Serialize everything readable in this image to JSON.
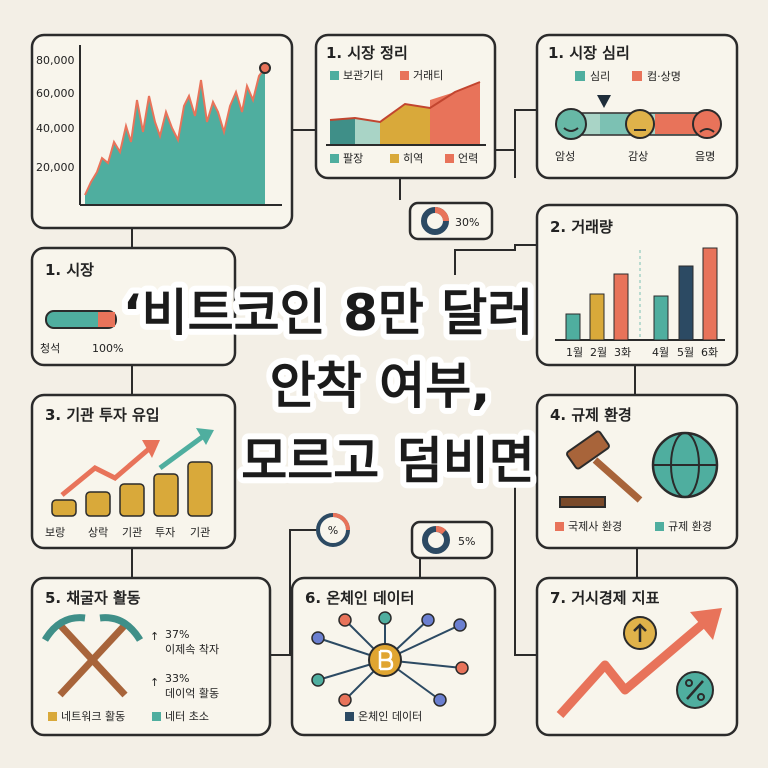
{
  "price_chart": {
    "y_labels": [
      "80,000",
      "60,000",
      "40,000",
      "20,000"
    ]
  },
  "market_cleanup": {
    "title": "1. 시장 정리",
    "legend_top": [
      "보관기터",
      "거래티"
    ],
    "legend_bottom": [
      "팔장",
      "히역",
      "언력"
    ]
  },
  "sentiment": {
    "title": "1. 시장 심리",
    "legend": [
      "심리",
      "컴·상명"
    ],
    "labels": [
      "암성",
      "감상",
      "음명"
    ]
  },
  "bubble_1": "30%",
  "volume": {
    "title": "2. 거래량",
    "labels": [
      "1월",
      "2월",
      "3화",
      "4월",
      "5월",
      "6화"
    ]
  },
  "market": {
    "title": "1. 시장",
    "labels": [
      "청석",
      "100%"
    ]
  },
  "headline": {
    "lines": [
      "‘비트코인 8만 달러",
      "안착 여부,",
      "모르고 덤비면"
    ]
  },
  "institutional": {
    "title": "3. 기관 투자 유입",
    "labels": [
      "보랑",
      "상락",
      "기관",
      "투자",
      "기관"
    ]
  },
  "regulation": {
    "title": "4. 규제 환경",
    "legend": [
      "국제사 환경",
      "규제 환경"
    ]
  },
  "bubble_2": "%",
  "bubble_3": "5%",
  "miners": {
    "title": "5. 채굴자 활동",
    "stats": [
      {
        "value": "37%",
        "label": "이제속 착자"
      },
      {
        "value": "33%",
        "label": "데이억 활동"
      }
    ],
    "legend": [
      "네트워크 활동",
      "네터 초소"
    ]
  },
  "onchain": {
    "title": "6. 온체인 데이터",
    "legend": [
      "온체인 데이터"
    ]
  },
  "macro": {
    "title": "7. 거시경제 지표"
  }
}
